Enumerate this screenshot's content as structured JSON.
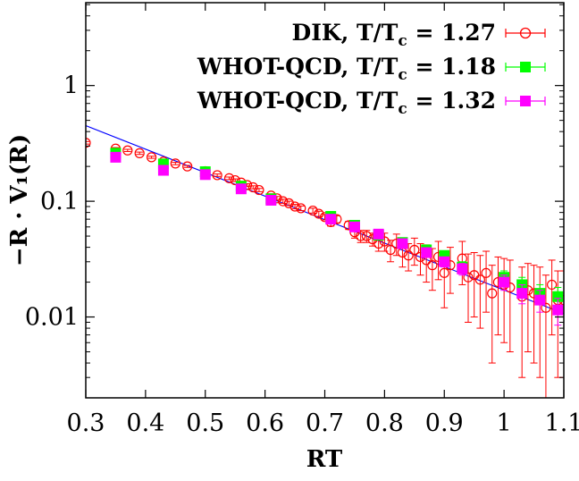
{
  "chart_data": {
    "type": "scatter",
    "title": "",
    "xlabel": "RT",
    "ylabel": "−R · V₁(R)",
    "xlim": [
      0.3,
      1.1
    ],
    "ylim": [
      0.002,
      5.2
    ],
    "yscale": "log",
    "xticks": [
      0.3,
      0.4,
      0.5,
      0.6,
      0.7,
      0.8,
      0.9,
      1.0,
      1.1
    ],
    "xtick_labels": [
      "0.3",
      "0.4",
      "0.5",
      "0.6",
      "0.7",
      "0.8",
      "0.9",
      "1",
      "1.1"
    ],
    "yticks": [
      0.01,
      0.1,
      1
    ],
    "ytick_labels": [
      "0.01",
      "0.1",
      "1"
    ],
    "grid": false,
    "legend_position": "top-right",
    "legend": [
      {
        "label_main": "DIK, T/T",
        "label_sub": "c",
        "label_tail": " = 1.27"
      },
      {
        "label_main": "WHOT-QCD, T/T",
        "label_sub": "c",
        "label_tail": " = 1.18"
      },
      {
        "label_main": "WHOT-QCD, T/T",
        "label_sub": "c",
        "label_tail": " = 1.32"
      }
    ],
    "fit_line": {
      "color": "#0000ff",
      "x": [
        0.3,
        1.1
      ],
      "y": [
        0.45,
        0.0107
      ]
    },
    "series": [
      {
        "name": "DIK, T/Tc = 1.27",
        "marker": "open-circle",
        "color": "#ff0000",
        "x": [
          0.3,
          0.35,
          0.37,
          0.39,
          0.41,
          0.43,
          0.45,
          0.47,
          0.5,
          0.52,
          0.54,
          0.55,
          0.56,
          0.57,
          0.58,
          0.59,
          0.61,
          0.62,
          0.63,
          0.64,
          0.65,
          0.66,
          0.68,
          0.69,
          0.7,
          0.71,
          0.72,
          0.74,
          0.75,
          0.76,
          0.77,
          0.78,
          0.79,
          0.8,
          0.81,
          0.82,
          0.83,
          0.84,
          0.85,
          0.86,
          0.87,
          0.88,
          0.89,
          0.9,
          0.91,
          0.93,
          0.94,
          0.95,
          0.96,
          0.97,
          0.98,
          0.99,
          1.0,
          1.01,
          1.03,
          1.04,
          1.05,
          1.06,
          1.07,
          1.08,
          1.09,
          1.1
        ],
        "y": [
          0.32,
          0.285,
          0.275,
          0.26,
          0.24,
          0.22,
          0.212,
          0.2,
          0.182,
          0.168,
          0.158,
          0.152,
          0.145,
          0.138,
          0.132,
          0.125,
          0.112,
          0.106,
          0.1,
          0.096,
          0.09,
          0.087,
          0.083,
          0.078,
          0.073,
          0.066,
          0.07,
          0.062,
          0.054,
          0.05,
          0.05,
          0.047,
          0.043,
          0.045,
          0.038,
          0.043,
          0.036,
          0.034,
          0.038,
          0.033,
          0.031,
          0.028,
          0.033,
          0.024,
          0.028,
          0.032,
          0.022,
          0.023,
          0.021,
          0.024,
          0.016,
          0.02,
          0.019,
          0.018,
          0.015,
          0.017,
          0.016,
          0.015,
          0.012,
          0.019,
          0.014,
          0.014
        ],
        "err": [
          0.008,
          0.006,
          0.006,
          0.006,
          0.005,
          0.005,
          0.005,
          0.004,
          0.004,
          0.004,
          0.004,
          0.004,
          0.004,
          0.004,
          0.004,
          0.004,
          0.004,
          0.004,
          0.004,
          0.004,
          0.004,
          0.004,
          0.004,
          0.004,
          0.004,
          0.005,
          0.005,
          0.005,
          0.006,
          0.006,
          0.006,
          0.006,
          0.006,
          0.008,
          0.008,
          0.009,
          0.009,
          0.009,
          0.01,
          0.01,
          0.011,
          0.011,
          0.012,
          0.012,
          0.012,
          0.013,
          0.013,
          0.013,
          0.013,
          0.013,
          0.012,
          0.013,
          0.013,
          0.013,
          0.012,
          0.012,
          0.012,
          0.012,
          0.011,
          0.012,
          0.011,
          0.011
        ]
      },
      {
        "name": "WHOT-QCD, T/Tc = 1.18",
        "marker": "filled-square",
        "color": "#00ff00",
        "x": [
          0.35,
          0.43,
          0.5,
          0.56,
          0.61,
          0.71,
          0.75,
          0.79,
          0.83,
          0.87,
          0.9,
          0.93,
          1.0,
          1.03,
          1.06,
          1.09
        ],
        "y": [
          0.26,
          0.21,
          0.18,
          0.135,
          0.105,
          0.074,
          0.062,
          0.051,
          0.044,
          0.038,
          0.034,
          0.027,
          0.022,
          0.019,
          0.016,
          0.015
        ],
        "err": [
          0.01,
          0.008,
          0.006,
          0.005,
          0.004,
          0.003,
          0.003,
          0.003,
          0.003,
          0.003,
          0.003,
          0.003,
          0.003,
          0.003,
          0.003,
          0.003
        ]
      },
      {
        "name": "WHOT-QCD, T/Tc = 1.32",
        "marker": "filled-square",
        "color": "#ff00ff",
        "x": [
          0.35,
          0.43,
          0.5,
          0.56,
          0.61,
          0.71,
          0.75,
          0.79,
          0.83,
          0.87,
          0.9,
          0.93,
          1.0,
          1.03,
          1.06,
          1.09
        ],
        "y": [
          0.24,
          0.185,
          0.17,
          0.128,
          0.102,
          0.07,
          0.06,
          0.052,
          0.043,
          0.036,
          0.03,
          0.026,
          0.02,
          0.016,
          0.014,
          0.0115
        ],
        "err": [
          0.008,
          0.006,
          0.005,
          0.004,
          0.004,
          0.003,
          0.003,
          0.003,
          0.003,
          0.003,
          0.003,
          0.003,
          0.003,
          0.003,
          0.003,
          0.003
        ]
      }
    ]
  }
}
